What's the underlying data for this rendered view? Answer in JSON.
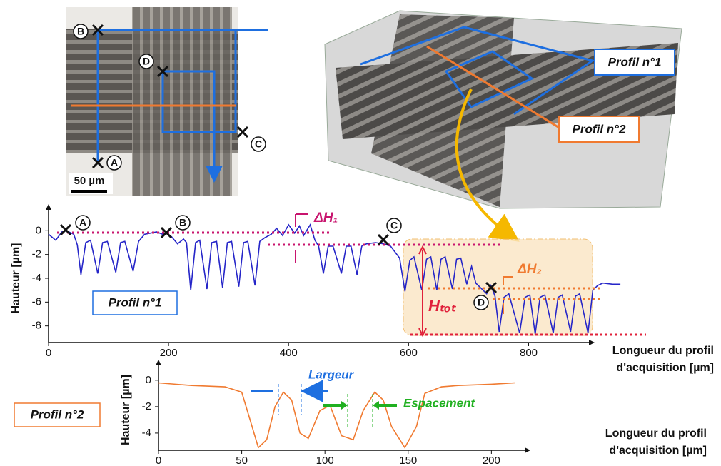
{
  "images": {
    "micrograph": {
      "scale_bar": "50 µm",
      "points": [
        "B",
        "D",
        "C",
        "A"
      ]
    },
    "render": {
      "profile1": "Profil n°1",
      "profile2": "Profil n°2"
    }
  },
  "chart_data": [
    {
      "type": "line",
      "label": "Profil n°1",
      "color": "#2525c8",
      "y_label": "Hauteur [µm]",
      "x_label": [
        "Longueur du profil",
        "d'acquisition [µm]"
      ],
      "x": [
        0,
        12,
        22,
        30,
        42,
        48,
        54,
        62,
        70,
        82,
        90,
        98,
        112,
        120,
        127,
        141,
        150,
        160,
        170,
        180,
        190,
        196,
        205,
        215,
        225,
        230,
        237,
        245,
        252,
        264,
        272,
        280,
        290,
        298,
        305,
        317,
        325,
        332,
        344,
        352,
        360,
        371,
        380,
        390,
        400,
        410,
        418,
        425,
        436,
        444,
        450,
        458,
        466,
        474,
        488,
        496,
        504,
        514,
        522,
        530,
        545,
        558,
        570,
        585,
        594,
        602,
        609,
        622,
        630,
        637,
        647,
        654,
        661,
        673,
        680,
        687,
        697,
        705,
        712,
        720,
        730,
        737,
        744,
        751,
        759,
        767,
        785,
        794,
        802,
        811,
        819,
        827,
        841,
        849,
        856,
        870,
        878,
        885,
        899,
        907,
        915,
        924,
        940,
        953
      ],
      "values": [
        -0.3,
        -0.8,
        -0.1,
        0,
        -0.3,
        -1.2,
        -3.7,
        -1.0,
        -0.8,
        -3.6,
        -1.0,
        -0.9,
        -3.5,
        -1.0,
        -0.9,
        -3.4,
        -0.9,
        -0.3,
        -0.2,
        -0.1,
        -0.3,
        -0.2,
        -0.5,
        -1.1,
        -0.7,
        -1.0,
        -5.0,
        -1.0,
        -0.8,
        -4.9,
        -1.0,
        -0.9,
        -4.8,
        -1.0,
        -0.9,
        -4.7,
        -1.0,
        -0.9,
        -4.6,
        -0.9,
        -0.6,
        -0.3,
        0.2,
        -0.4,
        0.5,
        -0.2,
        0.4,
        -0.4,
        0.5,
        -0.8,
        -1.3,
        -3.6,
        -1.3,
        -1.3,
        -3.6,
        -1.3,
        -1.3,
        -3.7,
        -1.3,
        -1.1,
        -1.0,
        -1.1,
        -1.3,
        -2.3,
        -5.1,
        -2.5,
        -2.2,
        -5.0,
        -2.4,
        -2.2,
        -5.0,
        -2.4,
        -2.2,
        -4.9,
        -2.4,
        -2.3,
        -4.5,
        -3.0,
        -4.4,
        -4.8,
        -5.3,
        -4.6,
        -5.5,
        -8.5,
        -5.6,
        -5.3,
        -8.6,
        -5.6,
        -5.4,
        -8.7,
        -5.6,
        -5.4,
        -8.6,
        -5.6,
        -5.4,
        -8.5,
        -5.5,
        -5.3,
        -8.6,
        -5.0,
        -4.6,
        -4.4,
        -4.5,
        -4.5
      ],
      "xlim": [
        0,
        960
      ],
      "ylim": [
        -9.4,
        1.4
      ],
      "xticks": [
        0,
        200,
        400,
        600,
        800
      ],
      "yticks": [
        -8,
        -6,
        -4,
        -2,
        0
      ],
      "annotations": {
        "points": [
          "A",
          "B",
          "C",
          "D"
        ],
        "delta_h1": "ΔH₁",
        "delta_h2": "ΔH₂",
        "h_tot": "Hₜₒₜ"
      }
    },
    {
      "type": "line",
      "label": "Profil n°2",
      "color": "#f07a30",
      "y_label": "Hauteur [µm]",
      "x_label": [
        "Longueur du profil",
        "d'acquisition [µm]"
      ],
      "x": [
        0,
        20,
        40,
        50,
        55,
        60,
        65,
        70,
        75,
        80,
        85,
        90,
        97,
        103,
        110,
        117,
        123,
        130,
        135,
        140,
        148,
        155,
        160,
        170,
        180,
        200,
        214
      ],
      "values": [
        -0.2,
        -0.4,
        -0.5,
        -0.9,
        -3.0,
        -5.1,
        -4.5,
        -2.0,
        -0.9,
        -1.5,
        -4.0,
        -4.4,
        -2.3,
        -1.9,
        -4.2,
        -4.5,
        -2.3,
        -0.9,
        -1.5,
        -3.5,
        -5.1,
        -3.5,
        -1.0,
        -0.5,
        -0.4,
        -0.3,
        -0.2
      ],
      "xlim": [
        0,
        220
      ],
      "ylim": [
        -5.3,
        0.8
      ],
      "xticks": [
        0,
        50,
        100,
        150,
        200
      ],
      "yticks": [
        -4,
        -2,
        0
      ],
      "annotations": {
        "width_label": "Largeur",
        "spacing_label": "Espacement"
      }
    }
  ]
}
